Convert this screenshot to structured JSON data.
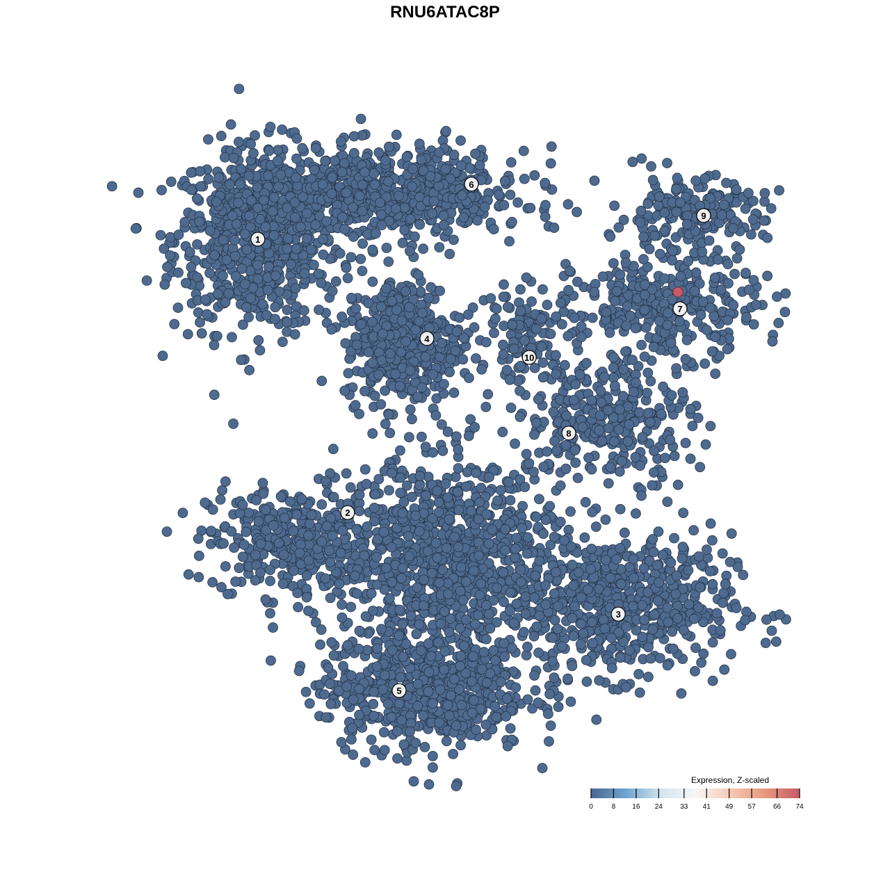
{
  "chart_data": {
    "type": "scatter",
    "title": "RNU6ATAC8P",
    "xlabel": "",
    "ylabel": "",
    "grid": false,
    "axes_shown": false,
    "point_color_default": "#4e6a8e",
    "highlight_color": "#c85a64",
    "clusters": [
      {
        "label": "1",
        "center": [
          -6.75,
          7.4
        ],
        "spread": [
          2.0,
          2.2
        ],
        "n": 700
      },
      {
        "label": "2",
        "center": [
          -5.5,
          -3.5
        ],
        "spread": [
          2.0,
          1.3
        ],
        "n": 350
      },
      {
        "label": "3",
        "center": [
          6.25,
          -5.75
        ],
        "spread": [
          2.7,
          1.7
        ],
        "n": 600
      },
      {
        "label": "4",
        "center": [
          -1.5,
          3.8
        ],
        "spread": [
          1.4,
          1.5
        ],
        "n": 450
      },
      {
        "label": "5",
        "center": [
          -0.75,
          -8.75
        ],
        "spread": [
          2.5,
          1.5
        ],
        "n": 600
      },
      {
        "label": "6",
        "center": [
          -2.0,
          9.0
        ],
        "spread": [
          3.3,
          1.1
        ],
        "n": 700
      },
      {
        "label": "7",
        "center": [
          8.0,
          5.0
        ],
        "spread": [
          2.2,
          1.2
        ],
        "n": 300
      },
      {
        "label": "8",
        "center": [
          6.0,
          1.0
        ],
        "spread": [
          2.0,
          1.5
        ],
        "n": 300
      },
      {
        "label": "9",
        "center": [
          8.75,
          8.25
        ],
        "spread": [
          1.8,
          0.9
        ],
        "n": 200
      },
      {
        "label": "10",
        "center": [
          3.0,
          4.0
        ],
        "spread": [
          1.2,
          1.2
        ],
        "n": 120
      },
      {
        "label": "",
        "center": [
          0.25,
          -4.0
        ],
        "spread": [
          2.7,
          2.4
        ],
        "n": 900
      }
    ],
    "cluster_label_positions": {
      "1": [
        -6.73,
        7.4
      ],
      "2": [
        -3.5,
        -2.43
      ],
      "3": [
        6.23,
        -6.08
      ],
      "4": [
        -0.65,
        3.83
      ],
      "5": [
        -1.65,
        -8.83
      ],
      "6": [
        0.95,
        9.38
      ],
      "7": [
        8.45,
        4.9
      ],
      "8": [
        4.45,
        0.43
      ],
      "9": [
        9.3,
        8.25
      ],
      "10": [
        3.03,
        3.15
      ]
    },
    "expression_values": {
      "default": 0
    },
    "highlighted_points": [
      {
        "x": 8.375,
        "y": 5.5,
        "value": 74
      }
    ],
    "colorbar": {
      "title": "Expression, Z-scaled",
      "range": [
        0,
        74
      ],
      "ticks": [
        "0",
        "8",
        "16",
        "24",
        "33",
        "41",
        "49",
        "57",
        "66",
        "74"
      ],
      "colors": [
        "#4a6790",
        "#6fa3cf",
        "#d2e4ef",
        "#f7f7f7",
        "#f6c9b3",
        "#e89880",
        "#c85a64"
      ],
      "placement": "bottom-right"
    }
  }
}
